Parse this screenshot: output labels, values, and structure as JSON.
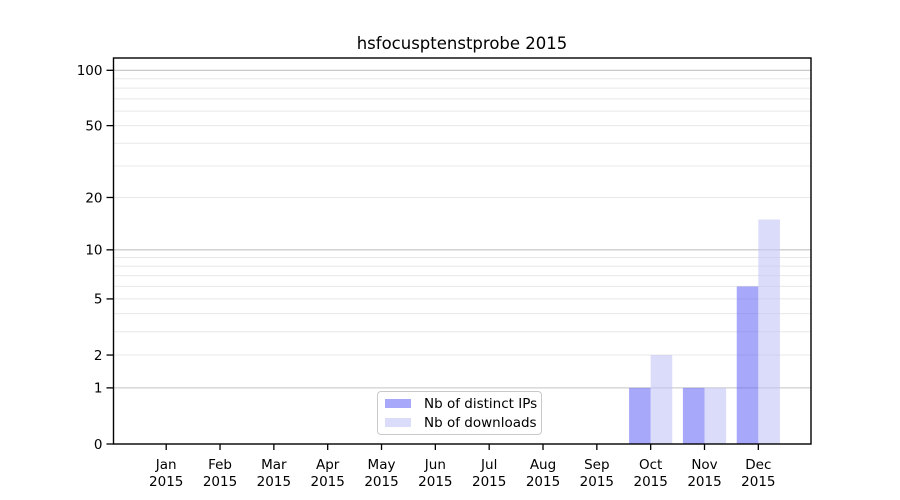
{
  "title": "hsfocusptenstprobe 2015",
  "chart_data": {
    "type": "bar",
    "title": "hsfocusptenstprobe 2015",
    "categories": [
      "Jan",
      "Feb",
      "Mar",
      "Apr",
      "May",
      "Jun",
      "Jul",
      "Aug",
      "Sep",
      "Oct",
      "Nov",
      "Dec"
    ],
    "category_year": "2015",
    "series": [
      {
        "name": "Nb of distinct IPs",
        "color": "rgba(105,105,246,0.58)",
        "values": [
          0,
          0,
          0,
          0,
          0,
          0,
          0,
          0,
          0,
          1,
          1,
          6
        ]
      },
      {
        "name": "Nb of downloads",
        "color": "rgba(197,197,247,0.62)",
        "values": [
          0,
          0,
          0,
          0,
          0,
          0,
          0,
          0,
          0,
          2,
          1,
          15
        ]
      }
    ],
    "xlabel": "",
    "ylabel": "",
    "yscale": "log1p",
    "ylim": [
      0,
      116
    ],
    "yticks": [
      0,
      1,
      2,
      5,
      10,
      20,
      50,
      100
    ],
    "major_gridlines": [
      1,
      10,
      100
    ],
    "minor_gridlines": [
      2,
      3,
      4,
      5,
      6,
      7,
      8,
      9,
      20,
      30,
      40,
      50,
      60,
      70,
      80,
      90
    ],
    "grid": true,
    "legend_position": "inside lower-center",
    "colors": {
      "major_grid": "#c3c3c3",
      "minor_grid": "#e8e8e8",
      "spine": "#000000",
      "text": "#000000"
    }
  }
}
